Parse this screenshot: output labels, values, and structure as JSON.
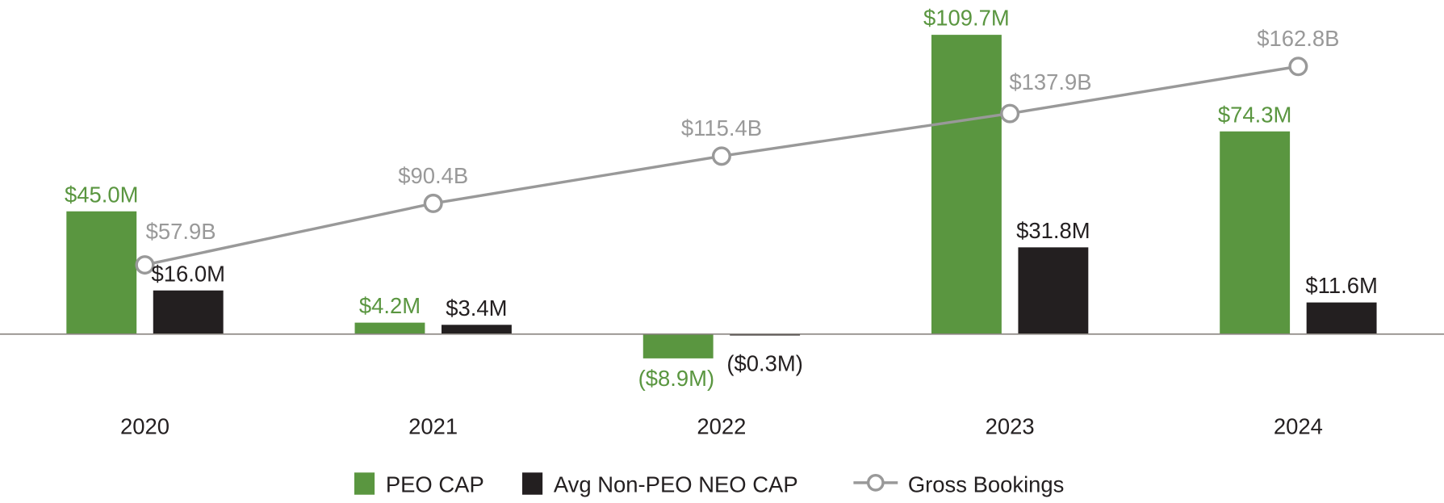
{
  "chart_data": {
    "type": "bar",
    "categories": [
      "2020",
      "2021",
      "2022",
      "2023",
      "2024"
    ],
    "series": [
      {
        "name": "PEO CAP",
        "kind": "bar",
        "unit": "$M",
        "values": [
          45.0,
          4.2,
          -8.9,
          109.7,
          74.3
        ],
        "labels": [
          "$45.0M",
          "$4.2M",
          "($8.9M)",
          "$109.7M",
          "$74.3M"
        ],
        "color": "#5a9640"
      },
      {
        "name": "Avg Non-PEO NEO CAP",
        "kind": "bar",
        "unit": "$M",
        "values": [
          16.0,
          3.4,
          -0.3,
          31.8,
          11.6
        ],
        "labels": [
          "$16.0M",
          "$3.4M",
          "($0.3M)",
          "$31.8M",
          "$11.6M"
        ],
        "color": "#231f20"
      },
      {
        "name": "Gross Bookings",
        "kind": "line",
        "unit": "$B",
        "values": [
          57.9,
          90.4,
          115.4,
          137.9,
          162.8
        ],
        "labels": [
          "$57.9B",
          "$90.4B",
          "$115.4B",
          "$137.9B",
          "$162.8B"
        ],
        "color": "#999999"
      }
    ],
    "title": "",
    "xlabel": "",
    "ylabel": "",
    "grid": false,
    "legend": "bottom-center"
  }
}
